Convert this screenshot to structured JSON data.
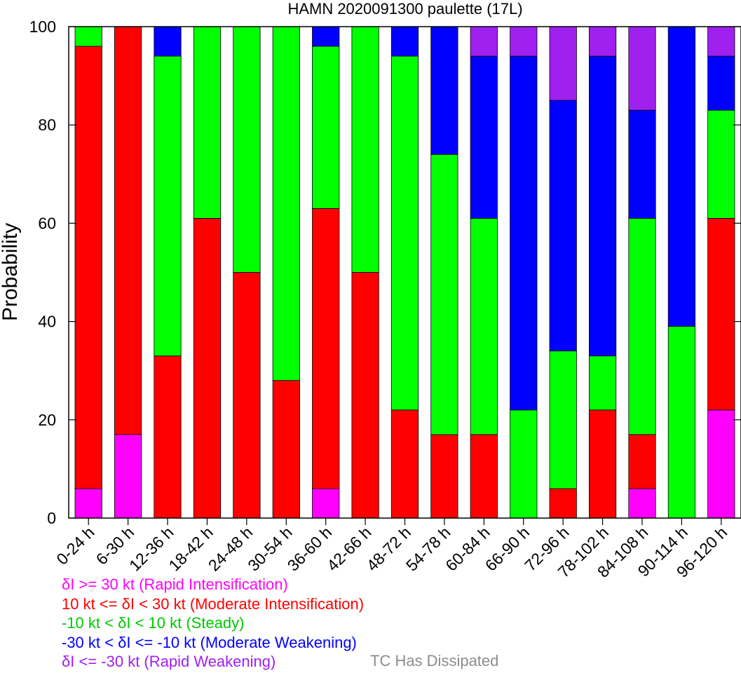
{
  "chart_data": {
    "type": "bar",
    "stacked": true,
    "title": "HAMN 2020091300 paulette (17L)",
    "xlabel": "",
    "ylabel": "Probability",
    "ylim": [
      0,
      100
    ],
    "yticks": [
      0,
      20,
      40,
      60,
      80,
      100
    ],
    "grid": false,
    "categories": [
      "0-24 h",
      "6-30 h",
      "12-36 h",
      "18-42 h",
      "24-48 h",
      "30-54 h",
      "36-60 h",
      "42-66 h",
      "48-72 h",
      "54-78 h",
      "60-84 h",
      "66-90 h",
      "72-96 h",
      "78-102 h",
      "84-108 h",
      "90-114 h",
      "96-120 h"
    ],
    "series": [
      {
        "key": "ri",
        "color": "#ff00ff",
        "values": [
          6,
          17,
          0,
          0,
          0,
          0,
          6,
          0,
          0,
          0,
          0,
          0,
          0,
          0,
          6,
          0,
          22
        ]
      },
      {
        "key": "mi",
        "color": "#ff0000",
        "values": [
          90,
          83,
          33,
          61,
          50,
          28,
          57,
          50,
          22,
          17,
          17,
          0,
          6,
          22,
          11,
          0,
          39
        ]
      },
      {
        "key": "st",
        "color": "#00ff00",
        "values": [
          4,
          0,
          61,
          39,
          50,
          72,
          33,
          50,
          72,
          57,
          44,
          22,
          28,
          11,
          44,
          39,
          22
        ]
      },
      {
        "key": "mw",
        "color": "#0000ff",
        "values": [
          0,
          0,
          6,
          0,
          0,
          0,
          4,
          0,
          6,
          26,
          33,
          72,
          51,
          61,
          22,
          61,
          11
        ]
      },
      {
        "key": "rw",
        "color": "#a020f0",
        "values": [
          0,
          0,
          0,
          0,
          0,
          0,
          0,
          0,
          0,
          0,
          6,
          6,
          15,
          6,
          17,
          0,
          6
        ]
      }
    ]
  },
  "legend": [
    {
      "text": "δI >= 30 kt (Rapid Intensification)",
      "color": "#ff00ff"
    },
    {
      "text": "10 kt <= δI < 30 kt (Moderate Intensification)",
      "color": "#ff0000"
    },
    {
      "text": "-10 kt < δI < 10 kt (Steady)",
      "color": "#00c800"
    },
    {
      "text": "-30 kt < δI <= -10 kt (Moderate Weakening)",
      "color": "#0000ff"
    },
    {
      "text": "δI <= -30 kt (Rapid Weakening)",
      "color": "#a020f0"
    }
  ],
  "dissipated_label": "TC Has Dissipated",
  "dissipated_color": "#8c8c8c"
}
